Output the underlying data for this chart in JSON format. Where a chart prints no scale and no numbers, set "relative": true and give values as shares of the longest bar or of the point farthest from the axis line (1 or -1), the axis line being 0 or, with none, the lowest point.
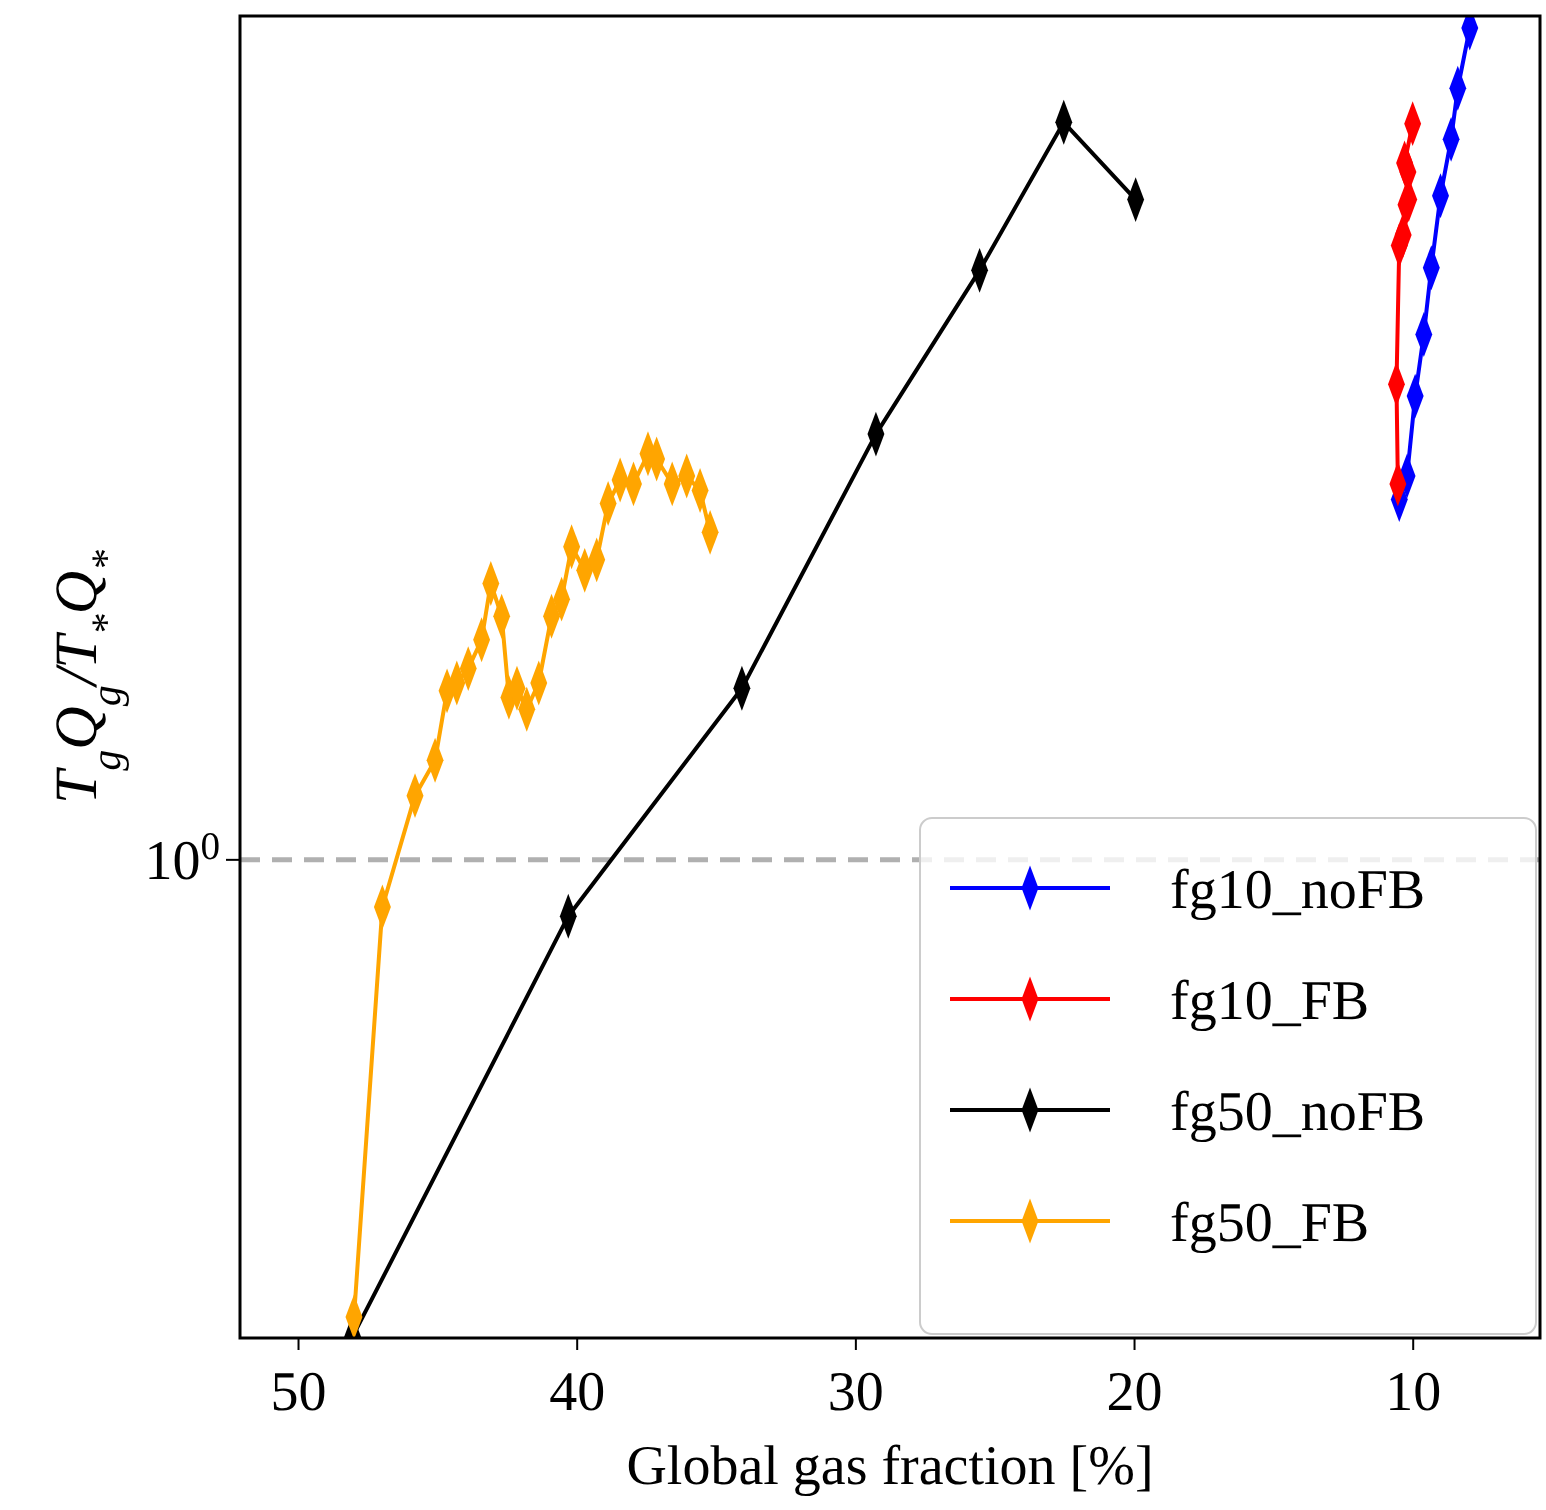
{
  "chart_data": {
    "type": "line",
    "xlabel": "Global gas fraction [%]",
    "ylabel": "T$_{g}$Q$_{g}$/T$_{*}$Q$_{*}$",
    "xlim": [
      52.1,
      5.45
    ],
    "xticks": [
      50,
      40,
      30,
      20,
      10
    ],
    "relative": true,
    "annotations": [
      "10$^{0}$"
    ],
    "marker": "diamond",
    "line_style": "solid",
    "legend": "bottom right",
    "ref_lines": [
      {
        "axis": "y",
        "value": 0.365,
        "color": "#b0b0b0",
        "line_style": "dashed"
      }
    ],
    "series": [
      {
        "name": "fg10_noFB",
        "color": "#0000ff",
        "x": [
          10.5,
          10.22,
          9.93,
          9.62,
          9.35,
          9.02,
          8.64,
          8.4,
          7.97
        ],
        "values": [
          0.64,
          0.658,
          0.719,
          0.766,
          0.817,
          0.872,
          0.915,
          0.954,
          1
        ]
      },
      {
        "name": "fg10_FB",
        "color": "#ff0000",
        "x": [
          10.55,
          10.6,
          10.5,
          10.36,
          10.26,
          10.16,
          10.19,
          10.31,
          10.02
        ],
        "values": [
          0.652,
          0.728,
          0.834,
          0.842,
          0.865,
          0.869,
          0.89,
          0.897,
          0.927
        ]
      },
      {
        "name": "fg50_noFB",
        "color": "#000000",
        "x": [
          48.06,
          40.32,
          34.09,
          29.28,
          25.56,
          22.54,
          19.96
        ],
        "values": [
          0.001,
          0.322,
          0.496,
          0.69,
          0.815,
          0.928,
          0.869
        ]
      },
      {
        "name": "fg50_FB",
        "color": "#ffa500",
        "x": [
          48.01,
          46.99,
          45.82,
          45.1,
          44.67,
          44.32,
          43.91,
          43.43,
          43.1,
          42.71,
          42.45,
          42.16,
          41.81,
          41.38,
          40.92,
          40.56,
          40.2,
          39.73,
          39.3,
          38.89,
          38.46,
          37.98,
          37.46,
          37.15,
          36.59,
          36.07,
          35.59,
          35.23
        ],
        "values": [
          0.016,
          0.329,
          0.414,
          0.441,
          0.494,
          0.5,
          0.511,
          0.533,
          0.576,
          0.551,
          0.489,
          0.496,
          0.48,
          0.5,
          0.551,
          0.564,
          0.604,
          0.586,
          0.594,
          0.637,
          0.655,
          0.652,
          0.675,
          0.671,
          0.652,
          0.658,
          0.647,
          0.615
        ]
      }
    ]
  }
}
